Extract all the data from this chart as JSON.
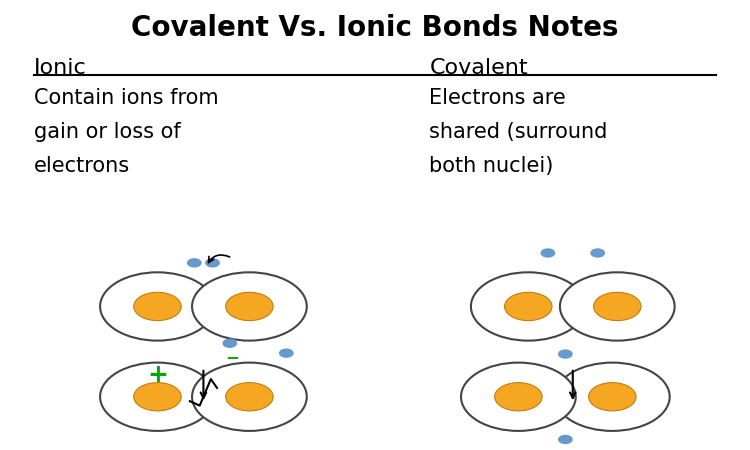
{
  "title": "Covalent Vs. Ionic Bonds Notes",
  "title_fontsize": 20,
  "background_color": "#ffffff",
  "ionic_label": "Ionic",
  "covalent_label": "Covalent",
  "ionic_text_lines": [
    "Contain ions from",
    "gain or loss of",
    "electrons"
  ],
  "covalent_text_lines": [
    "Electrons are",
    "shared (surround",
    "both nuclei)"
  ],
  "nucleus_color": "#f5a623",
  "nucleus_edge_color": "#c47d0e",
  "electron_color": "#6699cc",
  "circle_edge_color": "#444444",
  "circle_face_color": "#ffffff",
  "plus_color": "#00aa00",
  "minus_color": "#00aa00",
  "label_fontsize": 16,
  "text_fontsize": 15,
  "ion_symbol_fontsize": 18,
  "divider_color": "#aaaaaa"
}
